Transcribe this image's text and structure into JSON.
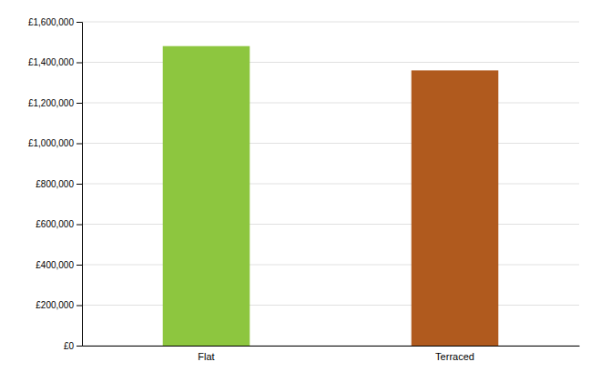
{
  "chart_data": {
    "type": "bar",
    "categories": [
      "Flat",
      "Terraced"
    ],
    "values": [
      1480000,
      1360000
    ],
    "colors": [
      "#8dc63f",
      "#b05a1e"
    ],
    "ylim": [
      0,
      1600000
    ],
    "yticks": [
      {
        "value": 0,
        "label": "£0"
      },
      {
        "value": 200000,
        "label": "£200,000"
      },
      {
        "value": 400000,
        "label": "£400,000"
      },
      {
        "value": 600000,
        "label": "£600,000"
      },
      {
        "value": 800000,
        "label": "£800,000"
      },
      {
        "value": 1000000,
        "label": "£1,000,000"
      },
      {
        "value": 1200000,
        "label": "£1,200,000"
      },
      {
        "value": 1400000,
        "label": "£1,400,000"
      },
      {
        "value": 1600000,
        "label": "£1,600,000"
      }
    ],
    "grid": true
  }
}
